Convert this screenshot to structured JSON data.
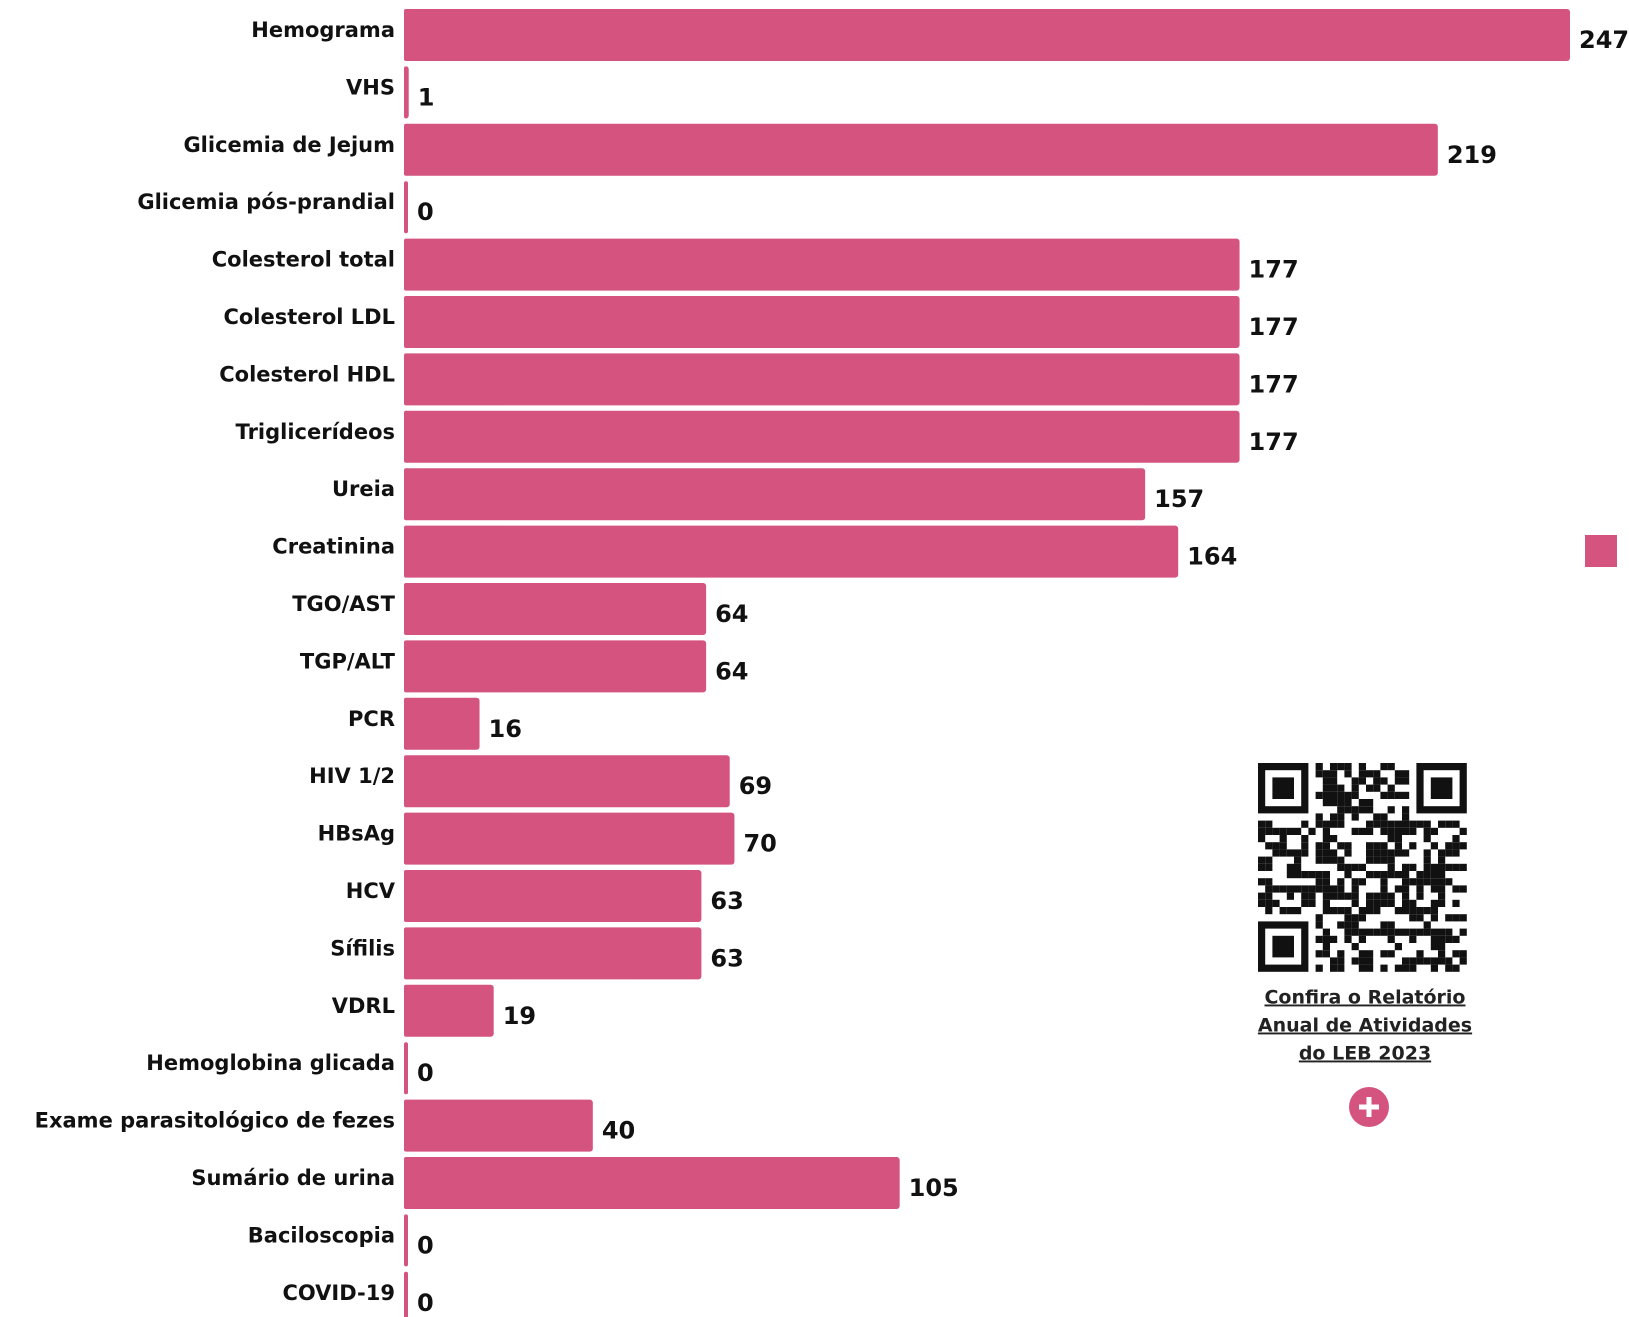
{
  "chart_data": {
    "type": "bar",
    "orientation": "horizontal",
    "color": "#d4537f",
    "categories": [
      "Hemograma",
      "VHS",
      "Glicemia de Jejum",
      "Glicemia pós-prandial",
      "Colesterol total",
      "Colesterol LDL",
      "Colesterol HDL",
      "Triglicerídeos",
      "Ureia",
      "Creatinina",
      "TGO/AST",
      "TGP/ALT",
      "PCR",
      "HIV 1/2",
      "HBsAg",
      "HCV",
      "Sífilis",
      "VDRL",
      "Hemoglobina glicada",
      "Exame parasitológico de fezes",
      "Sumário de urina",
      "Baciloscopia",
      "COVID-19"
    ],
    "values": [
      247,
      1,
      219,
      0,
      177,
      177,
      177,
      177,
      157,
      164,
      64,
      64,
      16,
      69,
      70,
      63,
      63,
      19,
      0,
      40,
      105,
      0,
      0
    ]
  },
  "link": {
    "lines": [
      "Confira o Relatório",
      "Anual de Atividades",
      "do LEB 2023"
    ]
  }
}
